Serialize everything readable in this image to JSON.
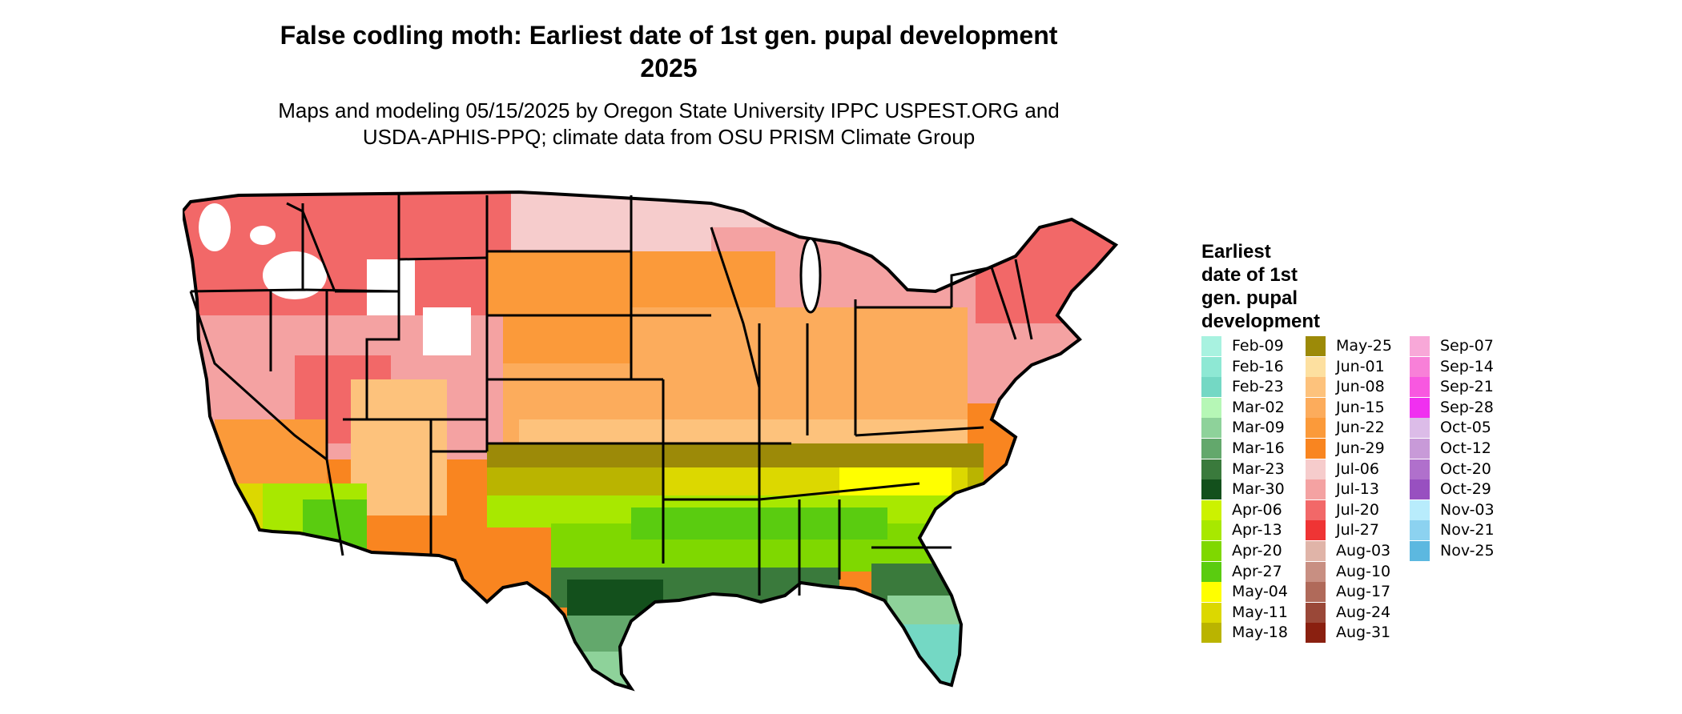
{
  "title_line1": "False codling moth: Earliest date of 1st gen. pupal development",
  "title_line2": "2025",
  "subtitle_line1": "Maps and modeling 05/15/2025 by Oregon State University IPPC USPEST.ORG and",
  "subtitle_line2": "USDA-APHIS-PPQ; climate data from OSU PRISM Climate Group",
  "legend": {
    "title_lines": [
      "Earliest",
      "date of 1st",
      "gen. pupal",
      "development"
    ],
    "columns": [
      [
        {
          "label": "Feb-09",
          "color": "#a8f2e0"
        },
        {
          "label": "Feb-16",
          "color": "#8ee8d4"
        },
        {
          "label": "Feb-23",
          "color": "#74d8c4"
        },
        {
          "label": "Mar-02",
          "color": "#b6f7b6"
        },
        {
          "label": "Mar-09",
          "color": "#8ed29a"
        },
        {
          "label": "Mar-16",
          "color": "#63a86c"
        },
        {
          "label": "Mar-23",
          "color": "#3a7a3c"
        },
        {
          "label": "Mar-30",
          "color": "#13501c"
        },
        {
          "label": "Apr-06",
          "color": "#ccf200"
        },
        {
          "label": "Apr-13",
          "color": "#a8e800"
        },
        {
          "label": "Apr-20",
          "color": "#7fd800"
        },
        {
          "label": "Apr-27",
          "color": "#5acc10"
        },
        {
          "label": "May-04",
          "color": "#ffff00"
        },
        {
          "label": "May-11",
          "color": "#dcd800"
        },
        {
          "label": "May-18",
          "color": "#bab400"
        }
      ],
      [
        {
          "label": "May-25",
          "color": "#9c8a08"
        },
        {
          "label": "Jun-01",
          "color": "#fde0a0"
        },
        {
          "label": "Jun-08",
          "color": "#fdc27c"
        },
        {
          "label": "Jun-15",
          "color": "#fcac5c"
        },
        {
          "label": "Jun-22",
          "color": "#fb9a3a"
        },
        {
          "label": "Jun-29",
          "color": "#f98520"
        },
        {
          "label": "Jul-06",
          "color": "#f6cccc"
        },
        {
          "label": "Jul-13",
          "color": "#f4a2a2"
        },
        {
          "label": "Jul-20",
          "color": "#f26868"
        },
        {
          "label": "Jul-27",
          "color": "#ef3434"
        },
        {
          "label": "Aug-03",
          "color": "#e0b4a8"
        },
        {
          "label": "Aug-10",
          "color": "#c88f82"
        },
        {
          "label": "Aug-17",
          "color": "#b06a5a"
        },
        {
          "label": "Aug-24",
          "color": "#9a4838"
        },
        {
          "label": "Aug-31",
          "color": "#8a2010"
        }
      ],
      [
        {
          "label": "Sep-07",
          "color": "#f8a8d8"
        },
        {
          "label": "Sep-14",
          "color": "#f880d8"
        },
        {
          "label": "Sep-21",
          "color": "#f858e0"
        },
        {
          "label": "Sep-28",
          "color": "#f030f0"
        },
        {
          "label": "Oct-05",
          "color": "#dcbce8"
        },
        {
          "label": "Oct-12",
          "color": "#c89ad8"
        },
        {
          "label": "Oct-20",
          "color": "#b070cc"
        },
        {
          "label": "Oct-29",
          "color": "#9850c0"
        },
        {
          "label": "Nov-03",
          "color": "#b8ecfc"
        },
        {
          "label": "Nov-21",
          "color": "#8cd2f0"
        },
        {
          "label": "Nov-25",
          "color": "#5cb8e0"
        }
      ]
    ]
  },
  "map_colors": {
    "border": "#000000",
    "background": "#ffffff",
    "no_development": "#ffffff"
  }
}
